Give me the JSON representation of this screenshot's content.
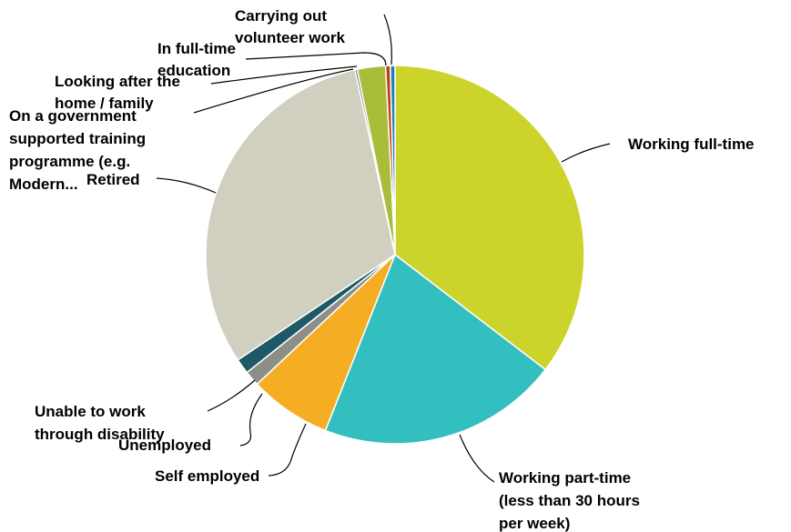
{
  "chart_data": {
    "type": "pie",
    "title": "",
    "slices": [
      {
        "label": "Working full-time",
        "value": 35.4,
        "color": "#ccd32a"
      },
      {
        "label": "Working part-time (less than 30 hours per week)",
        "value": 20.6,
        "color": "#33bfc0"
      },
      {
        "label": "Self employed",
        "value": 7.0,
        "color": "#f5ae23"
      },
      {
        "label": "Unemployed",
        "value": 1.3,
        "color": "#8c8f88"
      },
      {
        "label": "Unable to work through disability",
        "value": 1.3,
        "color": "#1f5866"
      },
      {
        "label": "Retired",
        "value": 31.0,
        "color": "#d0cfc0"
      },
      {
        "label": "On a government supported training programme (e.g. Modern...",
        "value": 0.2,
        "color": "#6b6e75"
      },
      {
        "label": "Looking after the home / family",
        "value": 2.4,
        "color": "#a9bd3b"
      },
      {
        "label": "In full-time education",
        "value": 0.4,
        "color": "#c2410c"
      },
      {
        "label": "Carrying out volunteer work",
        "value": 0.4,
        "color": "#1784b8"
      }
    ]
  },
  "labels": {
    "working_full_time": [
      "Working full-time"
    ],
    "working_part_time": [
      "Working part-time",
      "(less than 30 hours",
      "per week)"
    ],
    "self_employed": [
      "Self employed"
    ],
    "unemployed": [
      "Unemployed"
    ],
    "unable_to_work": [
      "Unable to work",
      "through disability"
    ],
    "retired": [
      "Retired"
    ],
    "government_training": [
      "On a government",
      "supported training",
      "programme (e.g.",
      "Modern..."
    ],
    "looking_after_home": [
      "Looking after the",
      "home / family"
    ],
    "full_time_education": [
      "In full-time",
      "education"
    ],
    "volunteer_work": [
      "Carrying out",
      "volunteer work"
    ]
  }
}
